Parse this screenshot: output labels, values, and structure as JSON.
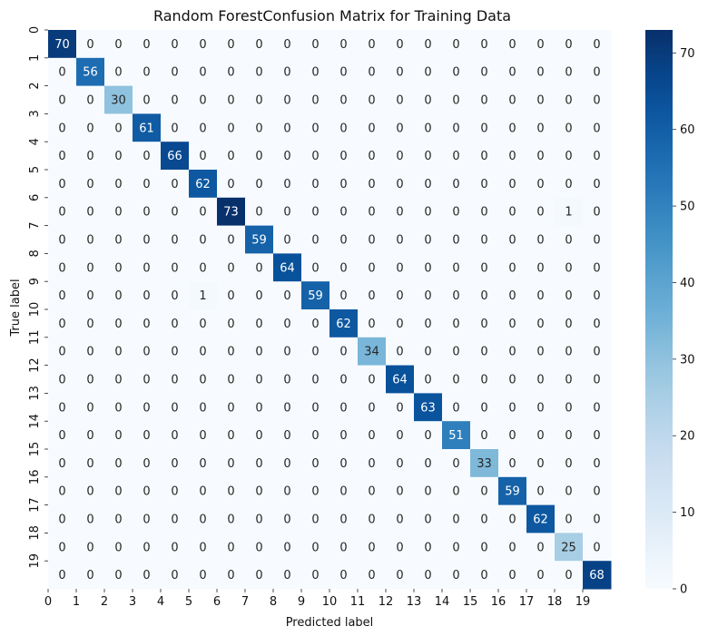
{
  "chart_data": {
    "type": "heatmap",
    "title": "Random ForestConfusion Matrix for Training Data",
    "xlabel": "Predicted label",
    "ylabel": "True label",
    "x_tick_labels": [
      "0",
      "1",
      "2",
      "3",
      "4",
      "5",
      "6",
      "7",
      "8",
      "9",
      "10",
      "11",
      "12",
      "13",
      "14",
      "15",
      "16",
      "17",
      "18",
      "19"
    ],
    "y_tick_labels": [
      "0",
      "1",
      "2",
      "3",
      "4",
      "5",
      "6",
      "7",
      "8",
      "9",
      "10",
      "11",
      "12",
      "13",
      "14",
      "15",
      "16",
      "17",
      "18",
      "19"
    ],
    "matrix": [
      [
        70,
        0,
        0,
        0,
        0,
        0,
        0,
        0,
        0,
        0,
        0,
        0,
        0,
        0,
        0,
        0,
        0,
        0,
        0,
        0
      ],
      [
        0,
        56,
        0,
        0,
        0,
        0,
        0,
        0,
        0,
        0,
        0,
        0,
        0,
        0,
        0,
        0,
        0,
        0,
        0,
        0
      ],
      [
        0,
        0,
        30,
        0,
        0,
        0,
        0,
        0,
        0,
        0,
        0,
        0,
        0,
        0,
        0,
        0,
        0,
        0,
        0,
        0
      ],
      [
        0,
        0,
        0,
        61,
        0,
        0,
        0,
        0,
        0,
        0,
        0,
        0,
        0,
        0,
        0,
        0,
        0,
        0,
        0,
        0
      ],
      [
        0,
        0,
        0,
        0,
        66,
        0,
        0,
        0,
        0,
        0,
        0,
        0,
        0,
        0,
        0,
        0,
        0,
        0,
        0,
        0
      ],
      [
        0,
        0,
        0,
        0,
        0,
        62,
        0,
        0,
        0,
        0,
        0,
        0,
        0,
        0,
        0,
        0,
        0,
        0,
        0,
        0
      ],
      [
        0,
        0,
        0,
        0,
        0,
        0,
        73,
        0,
        0,
        0,
        0,
        0,
        0,
        0,
        0,
        0,
        0,
        0,
        1,
        0
      ],
      [
        0,
        0,
        0,
        0,
        0,
        0,
        0,
        59,
        0,
        0,
        0,
        0,
        0,
        0,
        0,
        0,
        0,
        0,
        0,
        0
      ],
      [
        0,
        0,
        0,
        0,
        0,
        0,
        0,
        0,
        64,
        0,
        0,
        0,
        0,
        0,
        0,
        0,
        0,
        0,
        0,
        0
      ],
      [
        0,
        0,
        0,
        0,
        0,
        1,
        0,
        0,
        0,
        59,
        0,
        0,
        0,
        0,
        0,
        0,
        0,
        0,
        0,
        0
      ],
      [
        0,
        0,
        0,
        0,
        0,
        0,
        0,
        0,
        0,
        0,
        62,
        0,
        0,
        0,
        0,
        0,
        0,
        0,
        0,
        0
      ],
      [
        0,
        0,
        0,
        0,
        0,
        0,
        0,
        0,
        0,
        0,
        0,
        34,
        0,
        0,
        0,
        0,
        0,
        0,
        0,
        0
      ],
      [
        0,
        0,
        0,
        0,
        0,
        0,
        0,
        0,
        0,
        0,
        0,
        0,
        64,
        0,
        0,
        0,
        0,
        0,
        0,
        0
      ],
      [
        0,
        0,
        0,
        0,
        0,
        0,
        0,
        0,
        0,
        0,
        0,
        0,
        0,
        63,
        0,
        0,
        0,
        0,
        0,
        0
      ],
      [
        0,
        0,
        0,
        0,
        0,
        0,
        0,
        0,
        0,
        0,
        0,
        0,
        0,
        0,
        51,
        0,
        0,
        0,
        0,
        0
      ],
      [
        0,
        0,
        0,
        0,
        0,
        0,
        0,
        0,
        0,
        0,
        0,
        0,
        0,
        0,
        0,
        33,
        0,
        0,
        0,
        0
      ],
      [
        0,
        0,
        0,
        0,
        0,
        0,
        0,
        0,
        0,
        0,
        0,
        0,
        0,
        0,
        0,
        0,
        59,
        0,
        0,
        0
      ],
      [
        0,
        0,
        0,
        0,
        0,
        0,
        0,
        0,
        0,
        0,
        0,
        0,
        0,
        0,
        0,
        0,
        0,
        62,
        0,
        0
      ],
      [
        0,
        0,
        0,
        0,
        0,
        0,
        0,
        0,
        0,
        0,
        0,
        0,
        0,
        0,
        0,
        0,
        0,
        0,
        25,
        0
      ],
      [
        0,
        0,
        0,
        0,
        0,
        0,
        0,
        0,
        0,
        0,
        0,
        0,
        0,
        0,
        0,
        0,
        0,
        0,
        0,
        68
      ]
    ],
    "colormap": "Blues",
    "vmin": 0,
    "vmax": 73,
    "colorbar_ticks": [
      0,
      10,
      20,
      30,
      40,
      50,
      60,
      70
    ],
    "grid": false
  }
}
